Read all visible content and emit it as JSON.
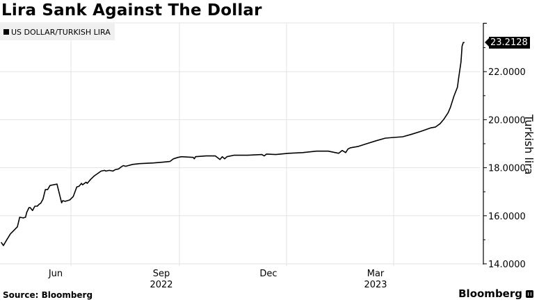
{
  "header": {
    "title": "Lira Sank Against The Dollar"
  },
  "legend": {
    "label": "US DOLLAR/TURKISH LIRA",
    "swatch_color": "#000000"
  },
  "footer": {
    "source": "Source: Bloomberg",
    "brand": "Bloomberg"
  },
  "last_value_label": "23.2128",
  "chart_data": {
    "type": "line",
    "title": "Lira Sank Against The Dollar",
    "xlabel": "",
    "ylabel": "Turkish lira",
    "ylim": [
      14,
      23.5
    ],
    "yticks": [
      14,
      16,
      18,
      20,
      22
    ],
    "ytick_labels": [
      "14.0000",
      "16.0000",
      "18.0000",
      "20.0000",
      "22.0000"
    ],
    "xticks": [
      "Jun",
      "Sep",
      "Dec",
      "Mar"
    ],
    "xtick_years": [
      {
        "label": "2022",
        "under": "Sep"
      },
      {
        "label": "2023",
        "under": "Mar"
      }
    ],
    "grid": true,
    "legend_position": "top-left",
    "series": [
      {
        "name": "US DOLLAR/TURKISH LIRA",
        "color": "#000000",
        "last_value": 23.2128,
        "x": [
          "2022-04-02",
          "2022-04-04",
          "2022-04-06",
          "2022-04-10",
          "2022-04-12",
          "2022-04-16",
          "2022-04-18",
          "2022-04-21",
          "2022-04-23",
          "2022-04-24",
          "2022-04-26",
          "2022-04-27",
          "2022-04-29",
          "2022-05-01",
          "2022-05-03",
          "2022-05-05",
          "2022-05-06",
          "2022-05-08",
          "2022-05-10",
          "2022-05-12",
          "2022-05-14",
          "2022-05-20",
          "2022-05-24",
          "2022-05-25",
          "2022-05-27",
          "2022-05-31",
          "2022-06-03",
          "2022-06-06",
          "2022-06-08",
          "2022-06-10",
          "2022-06-11",
          "2022-06-14",
          "2022-06-15",
          "2022-06-18",
          "2022-06-21",
          "2022-06-27",
          "2022-06-30",
          "2022-07-01",
          "2022-07-04",
          "2022-07-07",
          "2022-07-09",
          "2022-07-12",
          "2022-07-14",
          "2022-07-16",
          "2022-07-18",
          "2022-07-24",
          "2022-07-30",
          "2022-08-11",
          "2022-08-19",
          "2022-08-25",
          "2022-08-28",
          "2022-09-01",
          "2022-09-04",
          "2022-09-14",
          "2022-09-15",
          "2022-09-16",
          "2022-09-25",
          "2022-10-03",
          "2022-10-07",
          "2022-10-09",
          "2022-10-11",
          "2022-10-13",
          "2022-10-19",
          "2022-10-31",
          "2022-11-12",
          "2022-11-14",
          "2022-11-16",
          "2022-11-24",
          "2022-12-05",
          "2022-12-17",
          "2022-12-29",
          "2023-01-08",
          "2023-01-17",
          "2023-01-20",
          "2023-01-23",
          "2023-01-25",
          "2023-01-27",
          "2023-02-03",
          "2023-02-10",
          "2023-02-18",
          "2023-02-26",
          "2023-03-05",
          "2023-03-13",
          "2023-03-21",
          "2023-03-29",
          "2023-04-06",
          "2023-04-10",
          "2023-04-14",
          "2023-04-17",
          "2023-04-21",
          "2023-04-23",
          "2023-04-26",
          "2023-04-29",
          "2023-04-30",
          "2023-05-02",
          "2023-05-03",
          "2023-05-04",
          "2023-05-05"
        ],
        "values": [
          14.9,
          14.76,
          14.93,
          15.25,
          15.34,
          15.54,
          15.94,
          15.91,
          15.94,
          16.14,
          16.34,
          16.34,
          16.22,
          16.4,
          16.4,
          16.49,
          16.52,
          16.69,
          17.09,
          17.09,
          17.26,
          17.32,
          16.54,
          16.63,
          16.6,
          16.66,
          16.8,
          17.2,
          17.23,
          17.35,
          17.29,
          17.4,
          17.35,
          17.52,
          17.66,
          17.86,
          17.89,
          17.86,
          17.89,
          17.86,
          17.92,
          17.95,
          18.03,
          18.09,
          18.06,
          18.14,
          18.17,
          18.2,
          18.23,
          18.26,
          18.37,
          18.43,
          18.46,
          18.43,
          18.37,
          18.46,
          18.49,
          18.49,
          18.34,
          18.46,
          18.37,
          18.46,
          18.52,
          18.52,
          18.55,
          18.49,
          18.57,
          18.55,
          18.6,
          18.63,
          18.69,
          18.69,
          18.6,
          18.72,
          18.63,
          18.78,
          18.83,
          18.89,
          19.0,
          19.12,
          19.23,
          19.26,
          19.29,
          19.4,
          19.52,
          19.66,
          19.69,
          19.83,
          20.0,
          20.29,
          20.52,
          20.98,
          21.35,
          21.72,
          22.4,
          23.06,
          23.21,
          23.2128
        ]
      }
    ]
  }
}
